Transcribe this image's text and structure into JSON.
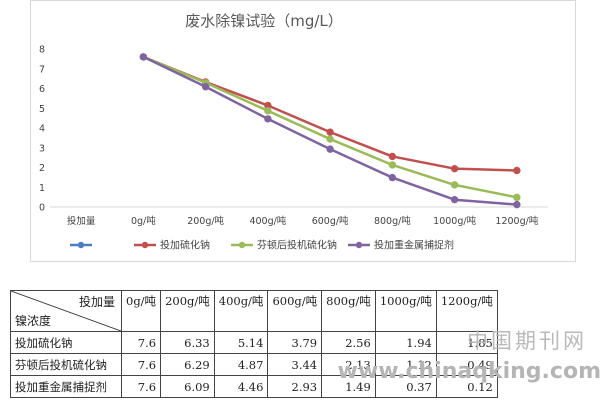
{
  "chart_data": {
    "type": "line",
    "title": "废水除镍试验（mg/L）",
    "categories": [
      "投加量",
      "0g/吨",
      "200g/吨",
      "400g/吨",
      "600g/吨",
      "800g/吨",
      "1000g/吨",
      "1200g/吨"
    ],
    "ylim": [
      0,
      8
    ],
    "yticks": [
      "0",
      "1",
      "2",
      "3",
      "4",
      "5",
      "6",
      "7",
      "8"
    ],
    "grid": false,
    "legend_position": "bottom",
    "series": [
      {
        "name": "",
        "color": "#4a7fc1",
        "values": [
          null,
          null,
          null,
          null,
          null,
          null,
          null,
          null
        ]
      },
      {
        "name": "投加硫化钠",
        "color": "#c0504d",
        "values": [
          null,
          7.6,
          6.33,
          5.14,
          3.79,
          2.56,
          1.94,
          1.85
        ]
      },
      {
        "name": "芬顿后投机硫化钠",
        "color": "#9bbb59",
        "values": [
          null,
          7.6,
          6.29,
          4.87,
          3.44,
          2.13,
          1.12,
          0.49
        ]
      },
      {
        "name": "投加重金属捕捉剂",
        "color": "#8064a2",
        "values": [
          null,
          7.6,
          6.09,
          4.46,
          2.93,
          1.49,
          0.37,
          0.12
        ]
      }
    ]
  },
  "table": {
    "corner_top": "投加量",
    "corner_bottom": "镍浓度",
    "headers": [
      "0g/吨",
      "200g/吨",
      "400g/吨",
      "600g/吨",
      "800g/吨",
      "1000g/吨",
      "1200g/吨"
    ],
    "rows": [
      {
        "label": "投加硫化钠",
        "values": [
          "7.6",
          "6.33",
          "5.14",
          "3.79",
          "2.56",
          "1.94",
          "1.85"
        ]
      },
      {
        "label": "芬顿后投机硫化钠",
        "values": [
          "7.6",
          "6.29",
          "4.87",
          "3.44",
          "2.13",
          "1.12",
          "0.49"
        ]
      },
      {
        "label": "投加重金属捕捉剂",
        "values": [
          "7.6",
          "6.09",
          "4.46",
          "2.93",
          "1.49",
          "0.37",
          "0.12"
        ]
      }
    ]
  },
  "watermark": {
    "cn": "中国期刊网",
    "url": "www.chinaqking.com"
  }
}
